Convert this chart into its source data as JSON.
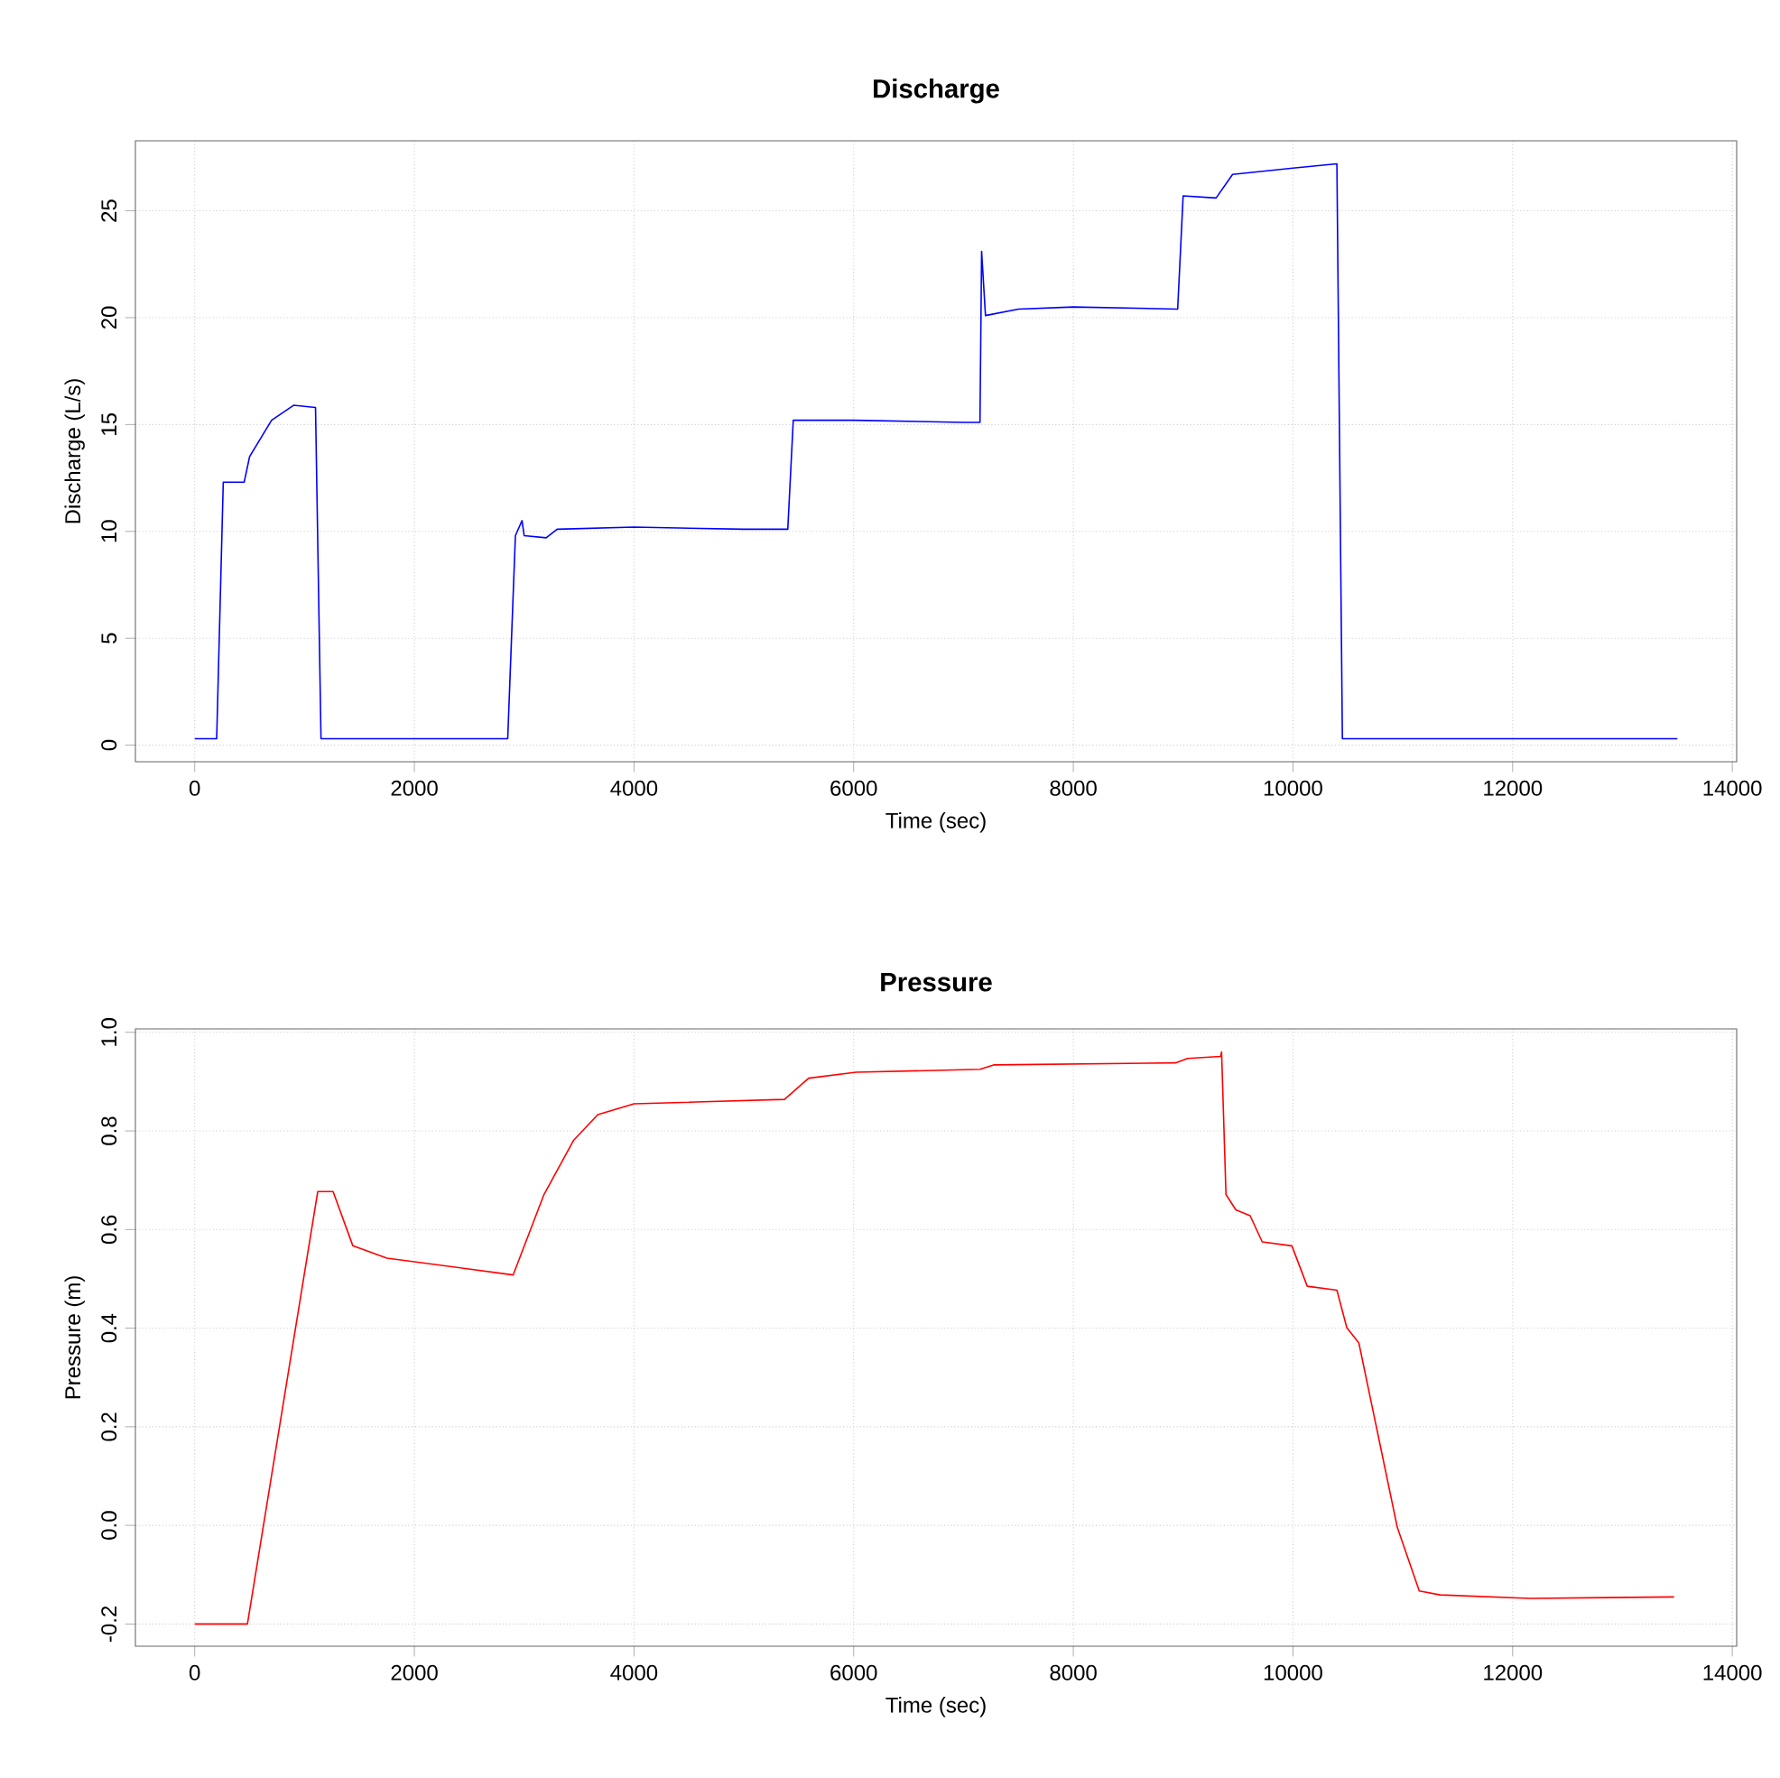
{
  "chart_data": [
    {
      "type": "line",
      "title": "Discharge",
      "xlabel": "Time (sec)",
      "ylabel": "Discharge (L/s)",
      "xlim": [
        -540,
        14040
      ],
      "ylim": [
        -0.776,
        28.276
      ],
      "xticks": [
        0,
        2000,
        4000,
        6000,
        8000,
        10000,
        12000,
        14000
      ],
      "yticks": [
        0,
        5,
        10,
        15,
        20,
        25
      ],
      "grid": true,
      "line_style": "solid",
      "series": [
        {
          "color": "#0000ff",
          "x": [
            0,
            200,
            260,
            450,
            500,
            700,
            900,
            1100,
            1150,
            2000,
            2850,
            2920,
            2980,
            3000,
            3200,
            3300,
            4000,
            5000,
            5400,
            5450,
            6000,
            7000,
            7150,
            7165,
            7200,
            7500,
            8000,
            8950,
            9000,
            9300,
            9450,
            10000,
            10400,
            10450,
            12000,
            13500
          ],
          "values": [
            0.3,
            0.3,
            12.3,
            12.3,
            13.5,
            15.2,
            15.9,
            15.8,
            0.3,
            0.3,
            0.3,
            9.8,
            10.5,
            9.8,
            9.7,
            10.1,
            10.2,
            10.1,
            10.1,
            15.2,
            15.2,
            15.1,
            15.1,
            23.1,
            20.1,
            20.4,
            20.5,
            20.4,
            25.7,
            25.6,
            26.7,
            27.0,
            27.2,
            0.3,
            0.3,
            0.3
          ]
        }
      ]
    },
    {
      "type": "line",
      "title": "Pressure",
      "xlabel": "Time (sec)",
      "ylabel": "Pressure (m)",
      "xlim": [
        -540,
        14040
      ],
      "ylim": [
        -0.245,
        1.007
      ],
      "xticks": [
        0,
        2000,
        4000,
        6000,
        8000,
        10000,
        12000,
        14000
      ],
      "yticks": [
        {
          "value": -0.2,
          "label": "-0.2"
        },
        {
          "value": 0,
          "label": "0.0"
        },
        {
          "value": 0.2,
          "label": "0.2"
        },
        {
          "value": 0.4,
          "label": "0.4"
        },
        {
          "value": 0.6,
          "label": "0.6"
        },
        {
          "value": 0.8,
          "label": "0.8"
        },
        {
          "value": 1,
          "label": "1.0"
        }
      ],
      "grid": true,
      "line_style": "solid",
      "series": [
        {
          "color": "#ff0000",
          "x": [
            0,
            480,
            1120,
            1260,
            1440,
            1750,
            2900,
            3180,
            3450,
            3670,
            4000,
            5370,
            5590,
            6020,
            7150,
            7280,
            8930,
            9040,
            9340,
            9350,
            9390,
            9480,
            9610,
            9720,
            9990,
            10130,
            10400,
            10490,
            10600,
            10950,
            11150,
            11340,
            12160,
            13470
          ],
          "values": [
            -0.2,
            -0.2,
            0.677,
            0.677,
            0.567,
            0.542,
            0.508,
            0.671,
            0.781,
            0.833,
            0.855,
            0.864,
            0.907,
            0.919,
            0.925,
            0.934,
            0.938,
            0.947,
            0.951,
            0.96,
            0.671,
            0.64,
            0.628,
            0.575,
            0.567,
            0.485,
            0.477,
            0.401,
            0.37,
            -0.004,
            -0.133,
            -0.141,
            -0.148,
            -0.145
          ]
        }
      ]
    }
  ]
}
